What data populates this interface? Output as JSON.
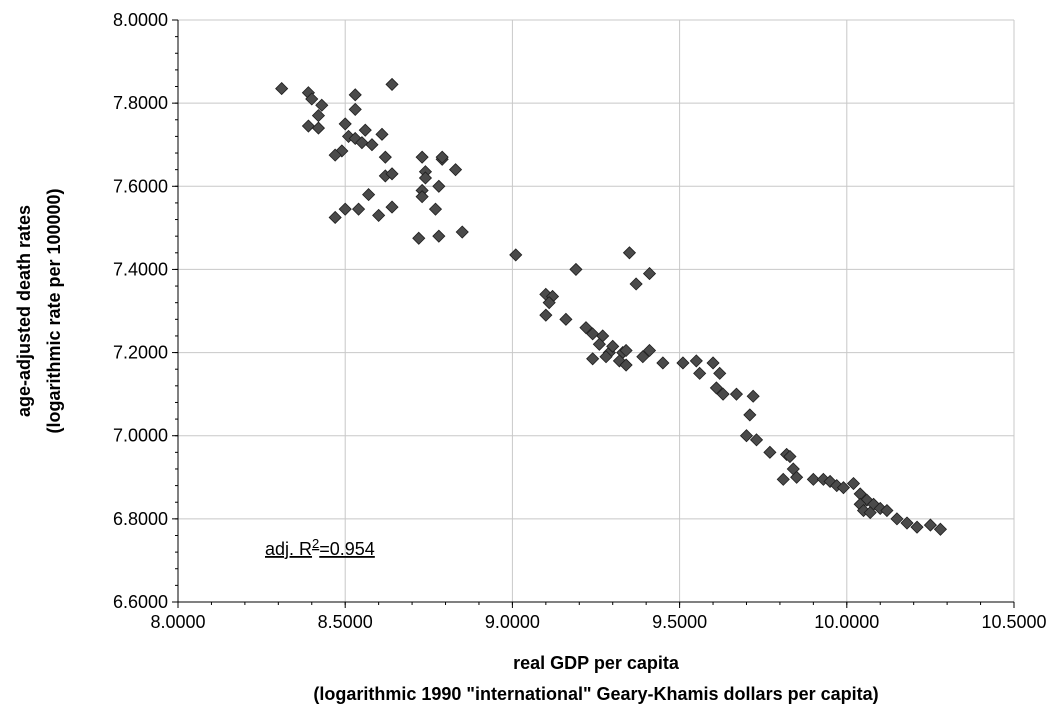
{
  "chart_data": {
    "type": "scatter",
    "title": "",
    "xlabel": "real GDP per capita",
    "xlabel_sub": "(logarithmic 1990 \"international\" Geary-Khamis dollars per capita)",
    "ylabel": "age-adjusted death rates",
    "ylabel_sub": "(logarithmic rate per 100000)",
    "xlim": [
      8.0,
      10.5
    ],
    "ylim": [
      6.6,
      8.0
    ],
    "xticks": [
      "8.0000",
      "8.5000",
      "9.0000",
      "9.5000",
      "10.0000",
      "10.5000"
    ],
    "yticks": [
      "6.6000",
      "6.8000",
      "7.0000",
      "7.2000",
      "7.4000",
      "7.6000",
      "7.8000",
      "8.0000"
    ],
    "grid": true,
    "marker": "diamond",
    "marker_color": "#4a4a4a",
    "annotation": {
      "prefix": "adj. R",
      "sup": "2",
      "suffix": "=0.954"
    },
    "points": [
      [
        8.31,
        7.835
      ],
      [
        8.39,
        7.825
      ],
      [
        8.4,
        7.81
      ],
      [
        8.43,
        7.795
      ],
      [
        8.42,
        7.77
      ],
      [
        8.39,
        7.745
      ],
      [
        8.42,
        7.74
      ],
      [
        8.53,
        7.82
      ],
      [
        8.64,
        7.845
      ],
      [
        8.53,
        7.785
      ],
      [
        8.5,
        7.75
      ],
      [
        8.51,
        7.72
      ],
      [
        8.53,
        7.715
      ],
      [
        8.56,
        7.735
      ],
      [
        8.61,
        7.725
      ],
      [
        8.55,
        7.705
      ],
      [
        8.58,
        7.7
      ],
      [
        8.49,
        7.685
      ],
      [
        8.47,
        7.675
      ],
      [
        8.62,
        7.67
      ],
      [
        8.62,
        7.625
      ],
      [
        8.64,
        7.63
      ],
      [
        8.57,
        7.58
      ],
      [
        8.5,
        7.545
      ],
      [
        8.54,
        7.545
      ],
      [
        8.64,
        7.55
      ],
      [
        8.47,
        7.525
      ],
      [
        8.6,
        7.53
      ],
      [
        8.73,
        7.67
      ],
      [
        8.74,
        7.635
      ],
      [
        8.79,
        7.665
      ],
      [
        8.79,
        7.67
      ],
      [
        8.74,
        7.62
      ],
      [
        8.83,
        7.64
      ],
      [
        8.73,
        7.59
      ],
      [
        8.73,
        7.575
      ],
      [
        8.78,
        7.6
      ],
      [
        8.77,
        7.545
      ],
      [
        8.72,
        7.475
      ],
      [
        8.78,
        7.48
      ],
      [
        8.85,
        7.49
      ],
      [
        9.01,
        7.435
      ],
      [
        9.19,
        7.4
      ],
      [
        9.35,
        7.44
      ],
      [
        9.41,
        7.39
      ],
      [
        9.37,
        7.365
      ],
      [
        9.1,
        7.34
      ],
      [
        9.12,
        7.335
      ],
      [
        9.11,
        7.32
      ],
      [
        9.16,
        7.28
      ],
      [
        9.1,
        7.29
      ],
      [
        9.22,
        7.26
      ],
      [
        9.24,
        7.245
      ],
      [
        9.27,
        7.24
      ],
      [
        9.26,
        7.22
      ],
      [
        9.29,
        7.2
      ],
      [
        9.3,
        7.215
      ],
      [
        9.33,
        7.2
      ],
      [
        9.28,
        7.19
      ],
      [
        9.24,
        7.185
      ],
      [
        9.32,
        7.18
      ],
      [
        9.34,
        7.205
      ],
      [
        9.34,
        7.17
      ],
      [
        9.39,
        7.19
      ],
      [
        9.41,
        7.205
      ],
      [
        9.45,
        7.175
      ],
      [
        9.51,
        7.175
      ],
      [
        9.55,
        7.18
      ],
      [
        9.56,
        7.15
      ],
      [
        9.6,
        7.175
      ],
      [
        9.62,
        7.15
      ],
      [
        9.61,
        7.115
      ],
      [
        9.63,
        7.1
      ],
      [
        9.67,
        7.1
      ],
      [
        9.72,
        7.095
      ],
      [
        9.71,
        7.05
      ],
      [
        9.7,
        7.0
      ],
      [
        9.73,
        6.99
      ],
      [
        9.77,
        6.96
      ],
      [
        9.82,
        6.955
      ],
      [
        9.83,
        6.95
      ],
      [
        9.84,
        6.92
      ],
      [
        9.85,
        6.9
      ],
      [
        9.81,
        6.895
      ],
      [
        9.9,
        6.895
      ],
      [
        9.93,
        6.895
      ],
      [
        9.95,
        6.89
      ],
      [
        9.97,
        6.88
      ],
      [
        9.99,
        6.875
      ],
      [
        10.02,
        6.885
      ],
      [
        10.04,
        6.86
      ],
      [
        10.06,
        6.845
      ],
      [
        10.04,
        6.835
      ],
      [
        10.05,
        6.82
      ],
      [
        10.08,
        6.835
      ],
      [
        10.07,
        6.815
      ],
      [
        10.1,
        6.825
      ],
      [
        10.12,
        6.82
      ],
      [
        10.15,
        6.8
      ],
      [
        10.18,
        6.79
      ],
      [
        10.21,
        6.78
      ],
      [
        10.25,
        6.785
      ],
      [
        10.28,
        6.775
      ]
    ]
  }
}
